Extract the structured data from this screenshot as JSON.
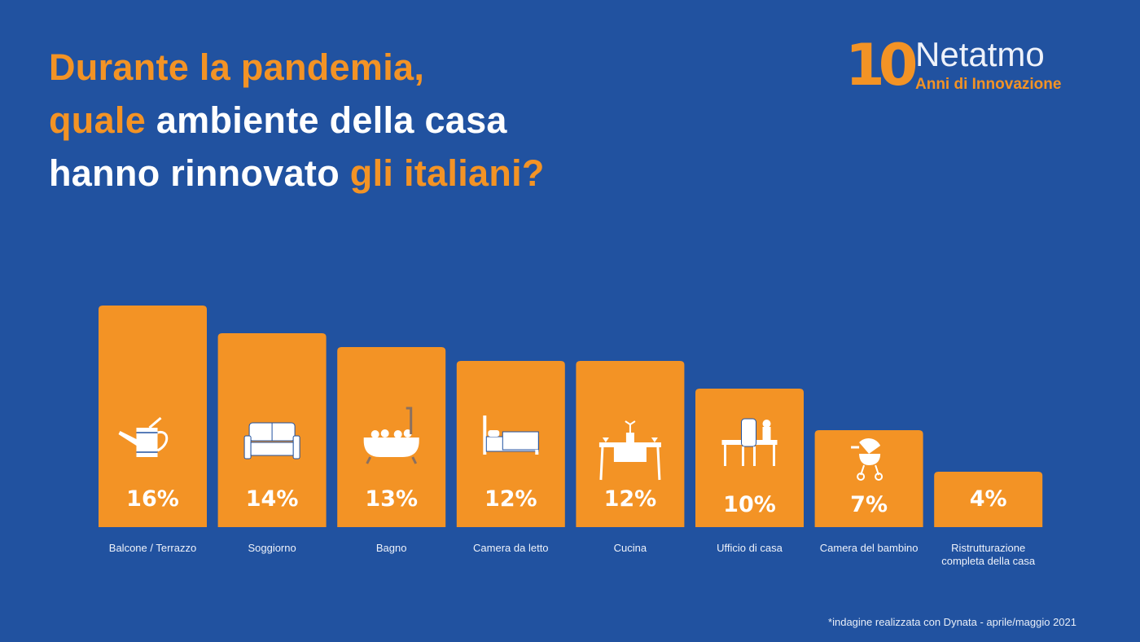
{
  "title": {
    "line1": [
      {
        "text": "Durante la pandemia,",
        "accent": true
      }
    ],
    "line2": [
      {
        "text": "quale ",
        "accent": true
      },
      {
        "text": "ambiente della casa",
        "accent": false
      }
    ],
    "line3": [
      {
        "text": "hanno rinnovato ",
        "accent": false
      },
      {
        "text": "gli italiani?",
        "accent": true
      }
    ]
  },
  "logo": {
    "number": "10",
    "brand": "Netatmo",
    "tagline": "Anni di Innovazione"
  },
  "footnote": "*indagine realizzata con Dynata - aprile/maggio 2021",
  "colors": {
    "background": "#2152a0",
    "accent": "#f39325",
    "text": "#ffffff"
  },
  "chart_data": {
    "type": "bar",
    "categories": [
      "Balcone / Terrazzo",
      "Soggiorno",
      "Bagno",
      "Camera da letto",
      "Cucina",
      "Ufficio di casa",
      "Camera del bambino",
      "Ristrutturazione completa della casa"
    ],
    "values": [
      16,
      14,
      13,
      12,
      12,
      10,
      7,
      4
    ],
    "labels": [
      "16%",
      "14%",
      "13%",
      "12%",
      "12%",
      "10%",
      "7%",
      "4%"
    ],
    "icons": [
      "watering-can-icon",
      "sofa-icon",
      "bathtub-icon",
      "bed-icon",
      "dining-table-icon",
      "desk-icon",
      "stroller-icon",
      ""
    ],
    "unit": "%",
    "ylim": [
      0,
      16
    ],
    "grid": false
  }
}
